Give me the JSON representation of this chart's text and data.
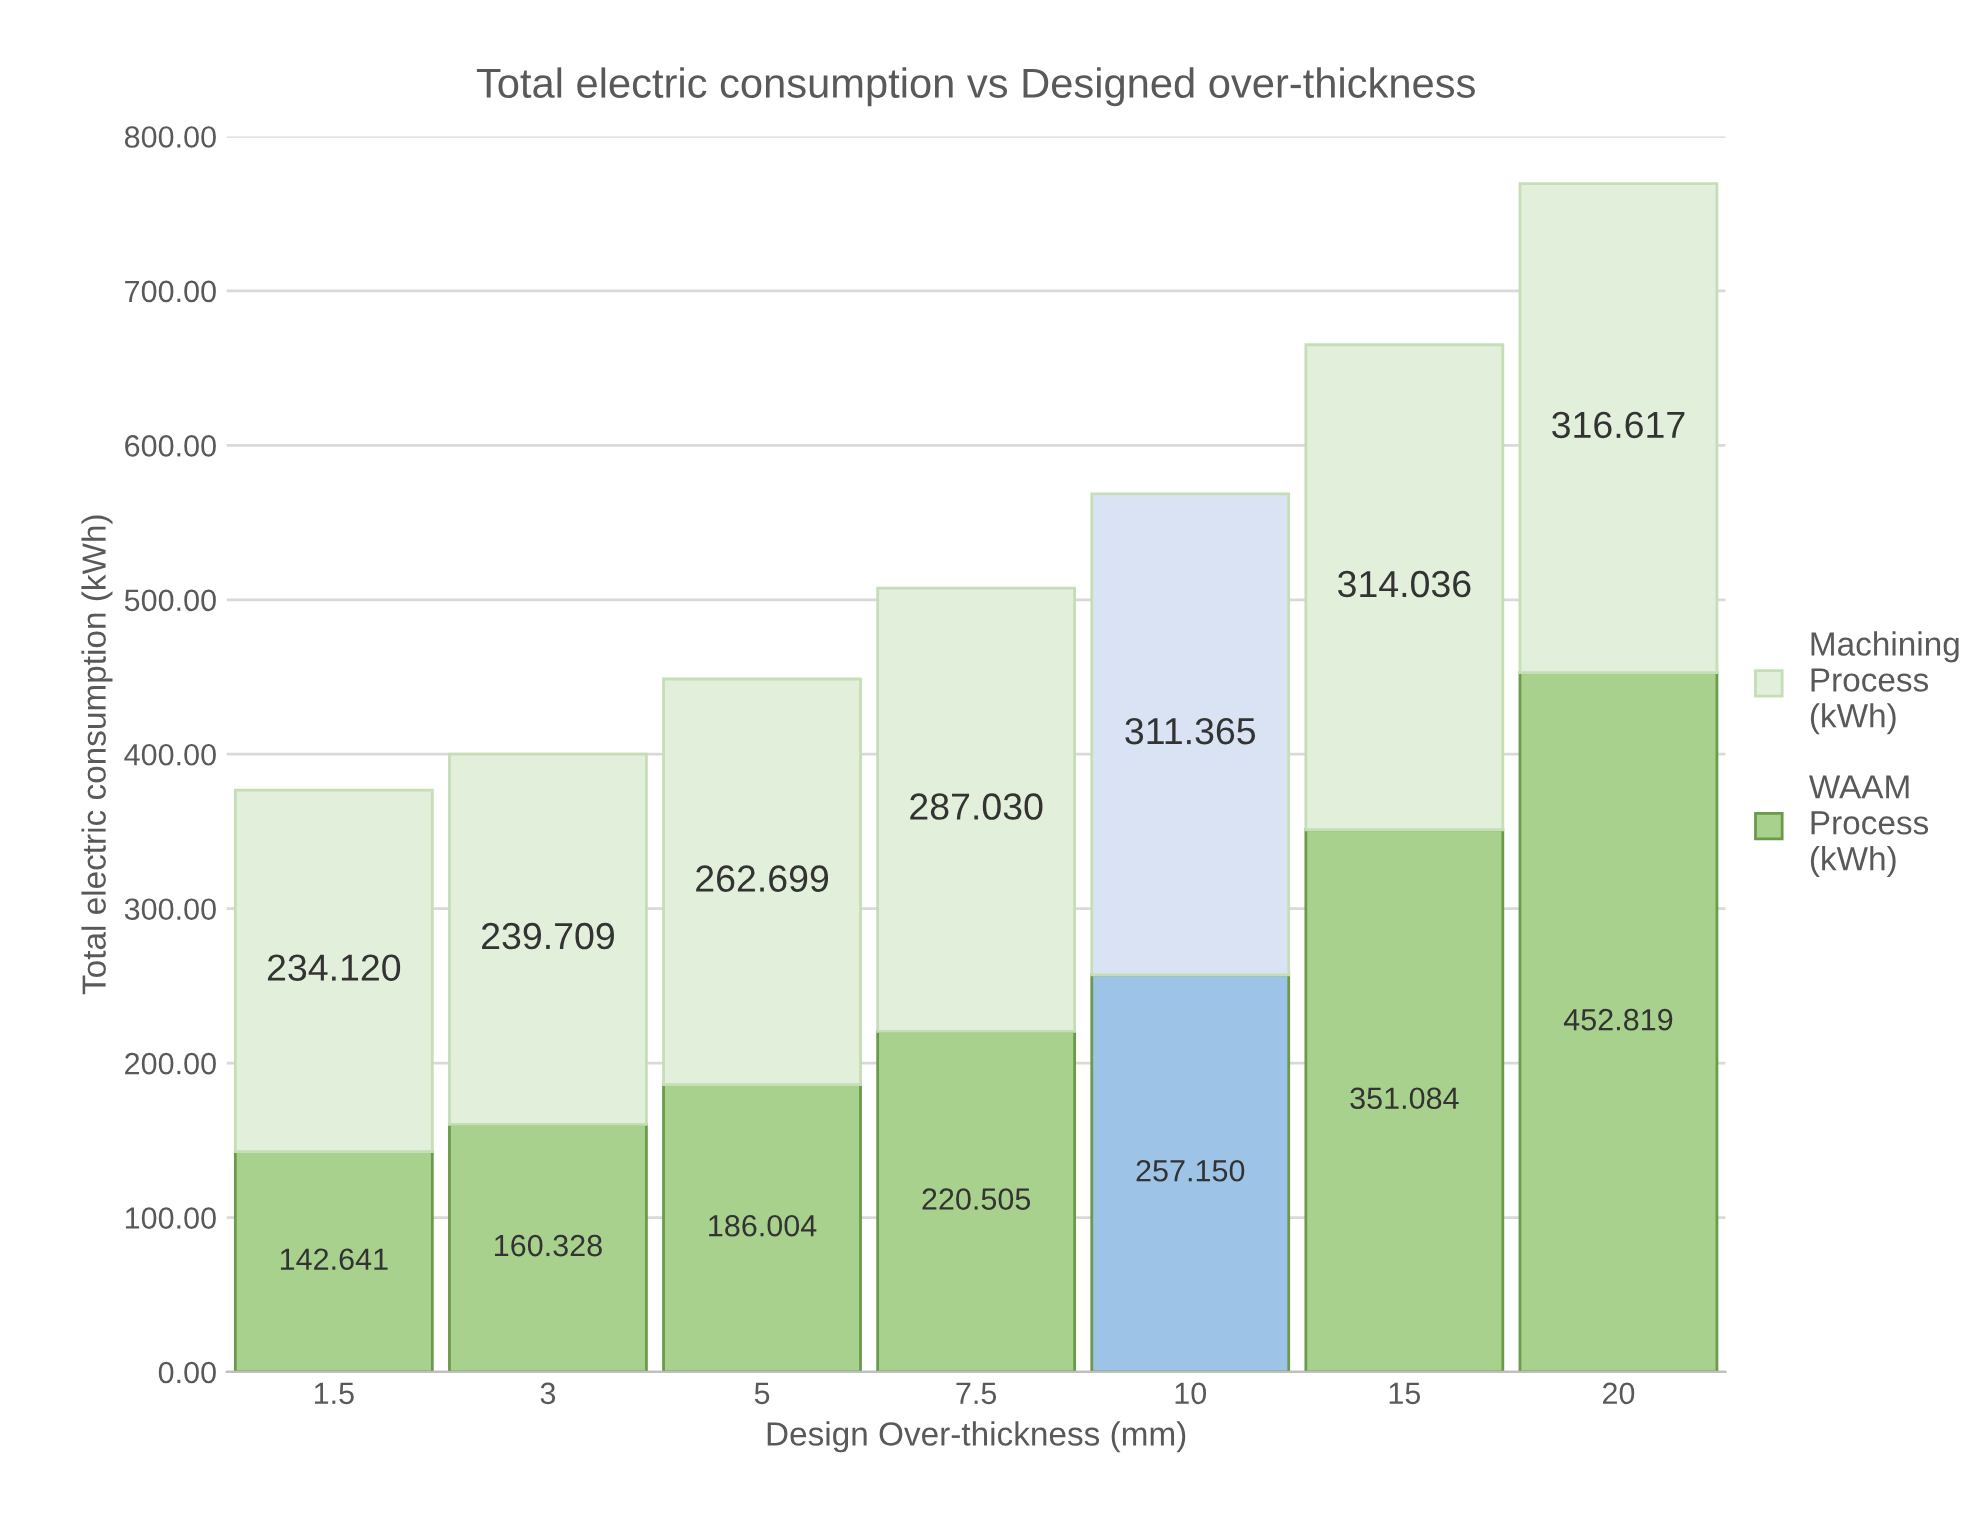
{
  "chart_data": {
    "type": "bar",
    "stacked": true,
    "title": "Total electric consumption vs Designed over-thickness",
    "xlabel": "Design Over-thickness (mm)",
    "ylabel": "Total electric consumption (kWh)",
    "categories": [
      "1.5",
      "3",
      "5",
      "7.5",
      "10",
      "15",
      "20"
    ],
    "series": [
      {
        "name": "WAAM\nProcess\n(kWh)",
        "color": "#a9d18e",
        "colors": [
          "#a9d18e",
          "#a9d18e",
          "#a9d18e",
          "#a9d18e",
          "#9dc3e6",
          "#a9d18e",
          "#a9d18e"
        ],
        "values": [
          142.641,
          160.328,
          186.004,
          220.505,
          257.15,
          351.084,
          452.819
        ],
        "value_labels": [
          "142.641",
          "160.328",
          "186.004",
          "220.505",
          "257.150",
          "351.084",
          "452.819"
        ]
      },
      {
        "name": "Machining\nProcess\n(kWh)",
        "color": "#e2efda",
        "colors": [
          "#e2efda",
          "#e2efda",
          "#e2efda",
          "#e2efda",
          "#dae3f3",
          "#e2efda",
          "#e2efda"
        ],
        "values": [
          234.12,
          239.709,
          262.699,
          287.03,
          311.365,
          314.036,
          316.617
        ],
        "value_labels": [
          "234.120",
          "239.709",
          "262.699",
          "287.030",
          "311.365",
          "314.036",
          "316.617"
        ]
      }
    ],
    "ylim": [
      0,
      800
    ],
    "yticks": [
      {
        "value": 0,
        "label": "0.00"
      },
      {
        "value": 100,
        "label": "100.00"
      },
      {
        "value": 200,
        "label": "200.00"
      },
      {
        "value": 300,
        "label": "300.00"
      },
      {
        "value": 400,
        "label": "400.00"
      },
      {
        "value": 500,
        "label": "500.00"
      },
      {
        "value": 600,
        "label": "600.00"
      },
      {
        "value": 700,
        "label": "700.00"
      },
      {
        "value": 800,
        "label": "800.00"
      }
    ],
    "grid": "y",
    "legend": "right"
  }
}
